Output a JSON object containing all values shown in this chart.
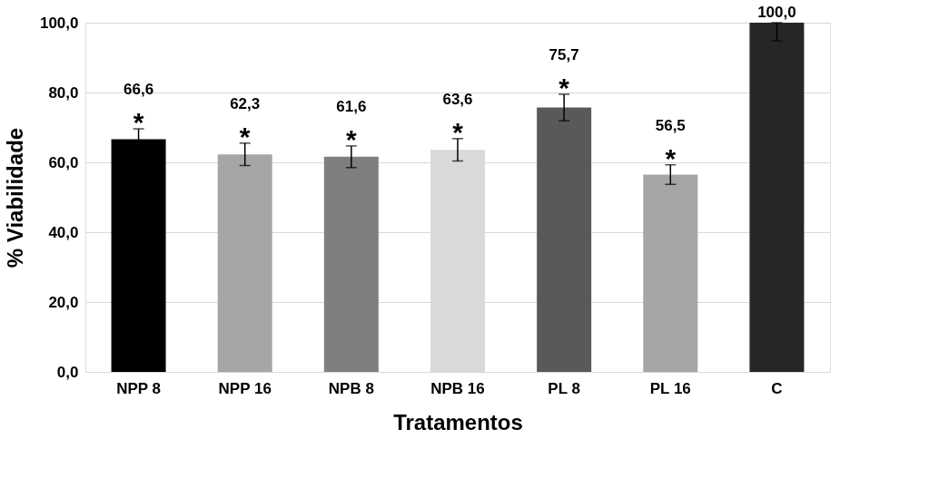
{
  "chart_data": {
    "type": "bar",
    "xlabel": "Tratamentos",
    "ylabel": "% Viabilidade",
    "categories": [
      "NPP 8",
      "NPP 16",
      "NPB 8",
      "NPB 16",
      "PL 8",
      "PL 16",
      "C"
    ],
    "values": [
      66.6,
      62.3,
      61.6,
      63.6,
      75.7,
      56.5,
      100.0
    ],
    "colors": [
      "#000000",
      "#a5a5a5",
      "#7f7f7f",
      "#d9d9d9",
      "#595959",
      "#a5a5a5",
      "#262626"
    ],
    "value_labels": [
      "66,6",
      "62,3",
      "61,6",
      "63,6",
      "75,7",
      "56,5",
      "100,0"
    ],
    "errors": [
      3.0,
      3.2,
      3.1,
      3.2,
      3.8,
      2.8,
      [
        94.8,
        100.0
      ]
    ],
    "ylim": [
      0,
      100
    ],
    "yticks": [
      {
        "value": 0,
        "label": "0,0"
      },
      {
        "value": 20,
        "label": "20,0"
      },
      {
        "value": 40,
        "label": "40,0"
      },
      {
        "value": 60,
        "label": "60,0"
      },
      {
        "value": 80,
        "label": "80,0"
      },
      {
        "value": 100,
        "label": "100,0"
      }
    ],
    "grid": "y",
    "annotations": [
      {
        "text": "*",
        "x": "NPP 8",
        "y": 66.6
      },
      {
        "text": "*",
        "x": "NPP 16",
        "y": 62.3
      },
      {
        "text": "*",
        "x": "NPB 8",
        "y": 61.6
      },
      {
        "text": "*",
        "x": "NPB 16",
        "y": 63.6
      },
      {
        "text": "*",
        "x": "PL 8",
        "y": 75.7
      },
      {
        "text": "*",
        "x": "PL 16",
        "y": 56.5
      }
    ]
  }
}
